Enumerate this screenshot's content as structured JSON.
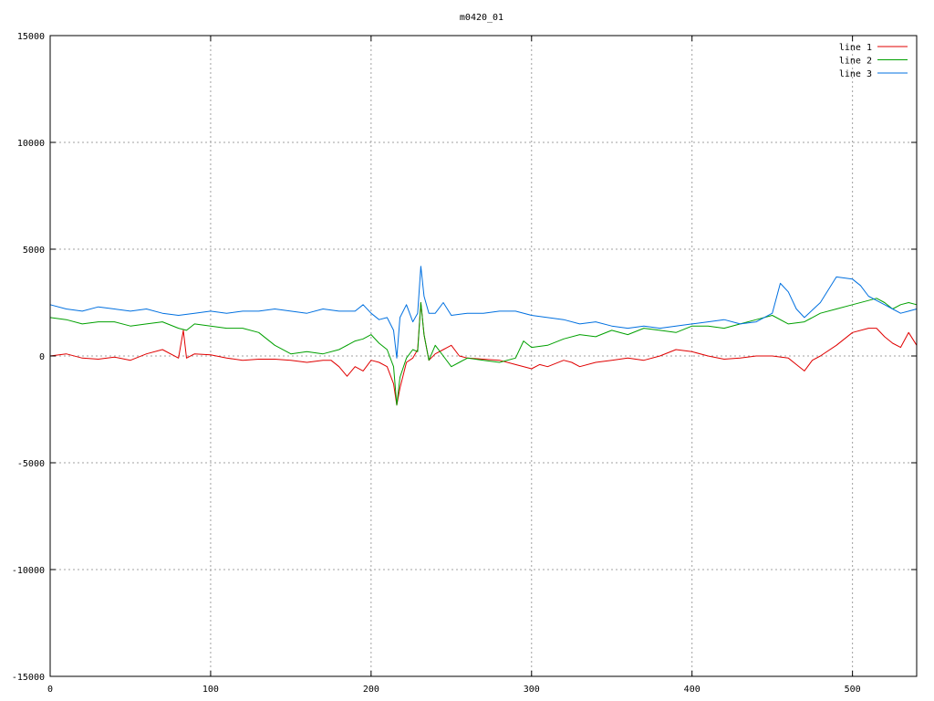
{
  "chart_data": {
    "type": "line",
    "title": "m0420_01",
    "xlabel": "",
    "ylabel": "",
    "xlim": [
      0,
      540
    ],
    "ylim": [
      -15000,
      15000
    ],
    "x_ticks": [
      0,
      100,
      200,
      300,
      400,
      500
    ],
    "y_ticks": [
      -15000,
      -10000,
      -5000,
      0,
      5000,
      10000,
      15000
    ],
    "grid": true,
    "legend_position": "top-right",
    "series": [
      {
        "name": "line 1",
        "color": "#e00000",
        "x": [
          0,
          10,
          20,
          30,
          40,
          50,
          60,
          70,
          80,
          83,
          85,
          90,
          100,
          110,
          120,
          130,
          140,
          150,
          160,
          170,
          175,
          180,
          185,
          190,
          195,
          200,
          205,
          210,
          214,
          216,
          218,
          222,
          226,
          229,
          231,
          233,
          236,
          240,
          245,
          250,
          255,
          260,
          270,
          280,
          290,
          300,
          305,
          310,
          320,
          325,
          330,
          340,
          350,
          360,
          370,
          380,
          390,
          400,
          410,
          420,
          430,
          440,
          450,
          460,
          465,
          470,
          475,
          480,
          490,
          500,
          510,
          515,
          520,
          525,
          530,
          535,
          540
        ],
        "y": [
          0,
          100,
          -100,
          -150,
          -50,
          -200,
          100,
          300,
          -100,
          1200,
          -100,
          100,
          50,
          -100,
          -200,
          -150,
          -150,
          -200,
          -300,
          -200,
          -200,
          -500,
          -950,
          -500,
          -700,
          -200,
          -300,
          -500,
          -1300,
          -2300,
          -1500,
          -300,
          -100,
          300,
          2500,
          1000,
          -200,
          100,
          300,
          500,
          0,
          -100,
          -150,
          -200,
          -400,
          -600,
          -400,
          -500,
          -200,
          -300,
          -500,
          -300,
          -200,
          -100,
          -200,
          0,
          300,
          200,
          0,
          -150,
          -100,
          0,
          0,
          -100,
          -400,
          -700,
          -200,
          0,
          500,
          1100,
          1300,
          1300,
          900,
          600,
          400,
          1100,
          500
        ]
      },
      {
        "name": "line 2",
        "color": "#00a000",
        "x": [
          0,
          10,
          20,
          30,
          40,
          50,
          60,
          70,
          80,
          85,
          90,
          100,
          110,
          120,
          130,
          140,
          150,
          160,
          170,
          180,
          190,
          195,
          200,
          205,
          210,
          214,
          216,
          218,
          222,
          226,
          229,
          231,
          233,
          236,
          240,
          245,
          250,
          255,
          260,
          270,
          280,
          290,
          295,
          300,
          310,
          320,
          330,
          340,
          350,
          360,
          370,
          380,
          390,
          400,
          410,
          420,
          430,
          440,
          450,
          460,
          470,
          480,
          490,
          500,
          510,
          515,
          520,
          525,
          530,
          535,
          540
        ],
        "y": [
          1800,
          1700,
          1500,
          1600,
          1600,
          1400,
          1500,
          1600,
          1300,
          1200,
          1500,
          1400,
          1300,
          1300,
          1100,
          500,
          100,
          200,
          100,
          300,
          700,
          800,
          1000,
          600,
          300,
          -500,
          -2300,
          -1000,
          -100,
          300,
          200,
          2500,
          1000,
          -200,
          500,
          0,
          -500,
          -300,
          -100,
          -200,
          -300,
          -100,
          700,
          400,
          500,
          800,
          1000,
          900,
          1200,
          1000,
          1300,
          1200,
          1100,
          1400,
          1400,
          1300,
          1500,
          1700,
          1900,
          1500,
          1600,
          2000,
          2200,
          2400,
          2600,
          2700,
          2500,
          2200,
          2400,
          2500,
          2400
        ]
      },
      {
        "name": "line 3",
        "color": "#0070e0",
        "x": [
          0,
          10,
          20,
          30,
          40,
          50,
          60,
          70,
          80,
          90,
          100,
          110,
          120,
          130,
          140,
          150,
          160,
          170,
          180,
          190,
          195,
          200,
          205,
          210,
          214,
          216,
          218,
          222,
          226,
          229,
          231,
          233,
          236,
          240,
          245,
          250,
          260,
          270,
          280,
          290,
          300,
          310,
          320,
          330,
          340,
          350,
          360,
          370,
          380,
          390,
          400,
          410,
          420,
          430,
          440,
          450,
          455,
          460,
          465,
          470,
          480,
          490,
          500,
          505,
          510,
          515,
          520,
          525,
          530,
          535,
          540
        ],
        "y": [
          2400,
          2200,
          2100,
          2300,
          2200,
          2100,
          2200,
          2000,
          1900,
          2000,
          2100,
          2000,
          2100,
          2100,
          2200,
          2100,
          2000,
          2200,
          2100,
          2100,
          2400,
          2000,
          1700,
          1800,
          1200,
          -100,
          1800,
          2400,
          1600,
          2000,
          4200,
          2800,
          2000,
          2000,
          2500,
          1900,
          2000,
          2000,
          2100,
          2100,
          1900,
          1800,
          1700,
          1500,
          1600,
          1400,
          1300,
          1400,
          1300,
          1400,
          1500,
          1600,
          1700,
          1500,
          1600,
          2000,
          3400,
          3000,
          2200,
          1800,
          2500,
          3700,
          3600,
          3300,
          2800,
          2600,
          2400,
          2200,
          2000,
          2100,
          2200
        ]
      }
    ]
  }
}
